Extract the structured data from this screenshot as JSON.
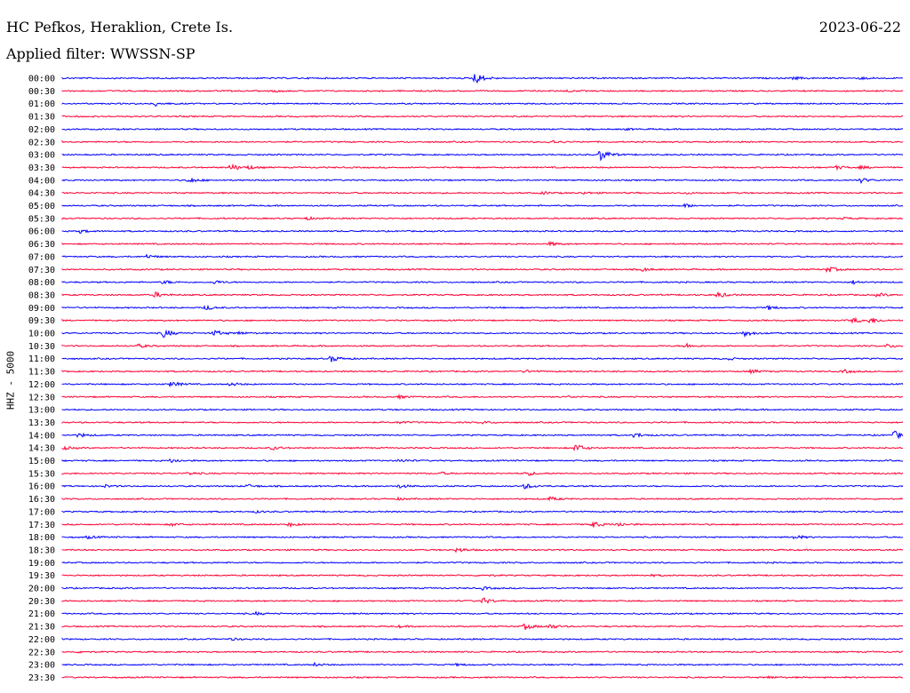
{
  "header": {
    "station": "HC Pefkos, Heraklion, Crete Is.",
    "date": "2023-06-22",
    "filter": "Applied filter: WWSSN-SP"
  },
  "chart_data": {
    "type": "line",
    "ylabel": "HHZ - 5000",
    "colors": [
      "#0000ff",
      "#ff0033"
    ],
    "rows": [
      {
        "label": "00:00",
        "events": [
          [
            0.49,
            7
          ],
          [
            0.87,
            1.5
          ],
          [
            0.95,
            1.2
          ]
        ]
      },
      {
        "label": "00:30",
        "events": [
          [
            0.25,
            1.2
          ],
          [
            0.6,
            1
          ]
        ]
      },
      {
        "label": "01:00",
        "events": [
          [
            0.11,
            2.5
          ]
        ]
      },
      {
        "label": "01:30",
        "events": []
      },
      {
        "label": "02:00",
        "events": [
          [
            0.67,
            0.8
          ]
        ]
      },
      {
        "label": "02:30",
        "events": [
          [
            0.58,
            2.5
          ]
        ]
      },
      {
        "label": "03:00",
        "events": [
          [
            0.64,
            7
          ]
        ]
      },
      {
        "label": "03:30",
        "events": [
          [
            0.2,
            4
          ],
          [
            0.22,
            2
          ],
          [
            0.92,
            2
          ],
          [
            0.95,
            1.5
          ]
        ]
      },
      {
        "label": "04:00",
        "events": [
          [
            0.15,
            3
          ],
          [
            0.95,
            2.5
          ]
        ]
      },
      {
        "label": "04:30",
        "events": [
          [
            0.57,
            1.5
          ],
          [
            0.62,
            1.2
          ],
          [
            0.74,
            1
          ]
        ]
      },
      {
        "label": "05:00",
        "events": [
          [
            0.74,
            2
          ]
        ]
      },
      {
        "label": "05:30",
        "events": [
          [
            0.29,
            1.5
          ],
          [
            0.93,
            1
          ]
        ]
      },
      {
        "label": "06:00",
        "events": [
          [
            0.02,
            2
          ]
        ]
      },
      {
        "label": "06:30",
        "events": [
          [
            0.58,
            2
          ]
        ]
      },
      {
        "label": "07:00",
        "events": [
          [
            0.1,
            2
          ]
        ]
      },
      {
        "label": "07:30",
        "events": [
          [
            0.69,
            2
          ],
          [
            0.91,
            3.5
          ]
        ]
      },
      {
        "label": "08:00",
        "events": [
          [
            0.12,
            2
          ],
          [
            0.18,
            2
          ],
          [
            0.94,
            2
          ]
        ]
      },
      {
        "label": "08:30",
        "events": [
          [
            0.11,
            3
          ],
          [
            0.78,
            3
          ],
          [
            0.97,
            2
          ]
        ]
      },
      {
        "label": "09:00",
        "events": [
          [
            0.17,
            2.5
          ],
          [
            0.84,
            2
          ]
        ]
      },
      {
        "label": "09:30",
        "events": [
          [
            0.94,
            3
          ],
          [
            0.96,
            3.5
          ]
        ]
      },
      {
        "label": "10:00",
        "events": [
          [
            0.12,
            5
          ],
          [
            0.18,
            3.5
          ],
          [
            0.81,
            4
          ],
          [
            0.21,
            1.5
          ]
        ]
      },
      {
        "label": "10:30",
        "events": [
          [
            0.09,
            2
          ],
          [
            0.74,
            3
          ],
          [
            0.98,
            2
          ]
        ]
      },
      {
        "label": "11:00",
        "events": [
          [
            0.32,
            3.5
          ],
          [
            0.79,
            1.5
          ]
        ]
      },
      {
        "label": "11:30",
        "events": [
          [
            0.55,
            1.5
          ],
          [
            0.82,
            2
          ],
          [
            0.93,
            1.8
          ]
        ]
      },
      {
        "label": "12:00",
        "events": [
          [
            0.13,
            3
          ],
          [
            0.2,
            2
          ]
        ]
      },
      {
        "label": "12:30",
        "events": [
          [
            0.4,
            1.5
          ],
          [
            0.6,
            1
          ]
        ]
      },
      {
        "label": "13:00",
        "events": []
      },
      {
        "label": "13:30",
        "events": [
          [
            0.4,
            1.5
          ],
          [
            0.5,
            1.2
          ]
        ]
      },
      {
        "label": "14:00",
        "events": [
          [
            0.02,
            2
          ],
          [
            0.68,
            3
          ],
          [
            0.99,
            4.5
          ]
        ]
      },
      {
        "label": "14:30",
        "events": [
          [
            0.0,
            2
          ],
          [
            0.25,
            2
          ],
          [
            0.61,
            5
          ]
        ]
      },
      {
        "label": "15:00",
        "events": [
          [
            0.13,
            2
          ],
          [
            0.4,
            2
          ]
        ]
      },
      {
        "label": "15:30",
        "events": [
          [
            0.15,
            1.5
          ],
          [
            0.45,
            1.2
          ],
          [
            0.55,
            3
          ]
        ]
      },
      {
        "label": "16:00",
        "events": [
          [
            0.05,
            1.5
          ],
          [
            0.22,
            2
          ],
          [
            0.4,
            2
          ],
          [
            0.55,
            3
          ]
        ]
      },
      {
        "label": "16:30",
        "events": [
          [
            0.58,
            2
          ],
          [
            0.4,
            1.2
          ]
        ]
      },
      {
        "label": "17:00",
        "events": [
          [
            0.23,
            1
          ]
        ]
      },
      {
        "label": "17:30",
        "events": [
          [
            0.13,
            1.5
          ],
          [
            0.27,
            2
          ],
          [
            0.63,
            3.5
          ],
          [
            0.66,
            2.5
          ]
        ]
      },
      {
        "label": "18:00",
        "events": [
          [
            0.03,
            1.5
          ],
          [
            0.87,
            2.5
          ]
        ]
      },
      {
        "label": "18:30",
        "events": [
          [
            0.47,
            2.5
          ]
        ]
      },
      {
        "label": "19:00",
        "events": []
      },
      {
        "label": "19:30",
        "events": [
          [
            0.5,
            1
          ],
          [
            0.7,
            0.8
          ]
        ]
      },
      {
        "label": "20:00",
        "events": [
          [
            0.5,
            1.5
          ]
        ]
      },
      {
        "label": "20:30",
        "events": [
          [
            0.5,
            3.5
          ]
        ]
      },
      {
        "label": "21:00",
        "events": [
          [
            0.23,
            1.5
          ]
        ]
      },
      {
        "label": "21:30",
        "events": [
          [
            0.55,
            3.5
          ],
          [
            0.58,
            2.5
          ],
          [
            0.4,
            1
          ]
        ]
      },
      {
        "label": "22:00",
        "events": [
          [
            0.2,
            1.2
          ]
        ]
      },
      {
        "label": "22:30",
        "events": [
          [
            0.02,
            1
          ]
        ]
      },
      {
        "label": "23:00",
        "events": [
          [
            0.3,
            1.5
          ],
          [
            0.47,
            1
          ]
        ]
      },
      {
        "label": "23:30",
        "events": [
          [
            0.84,
            1.2
          ]
        ]
      }
    ]
  }
}
